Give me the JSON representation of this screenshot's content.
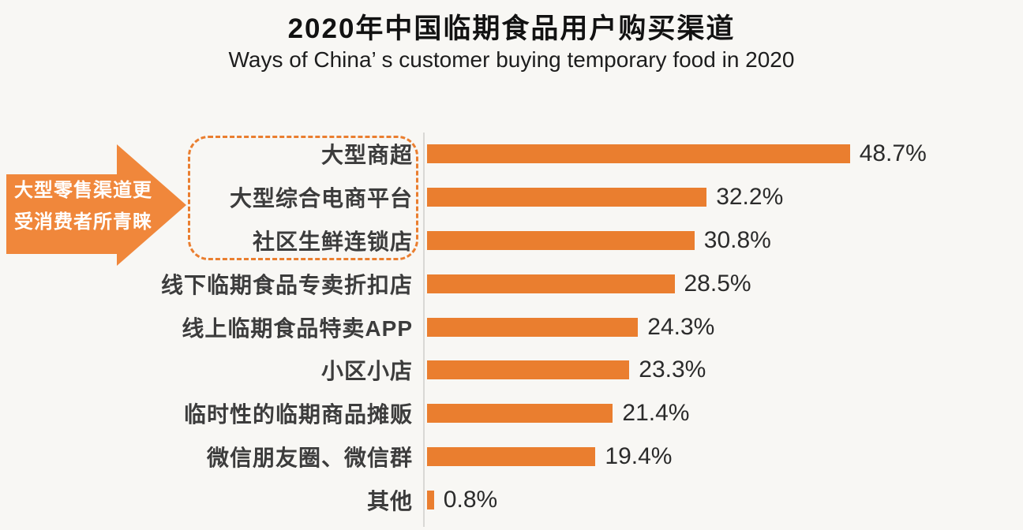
{
  "page": {
    "background_color": "#f8f7f4"
  },
  "header": {
    "title": "2020年中国临期食品用户购买渠道",
    "subtitle": "Ways of China’ s customer buying temporary food in 2020"
  },
  "annotation": {
    "arrow_label_line1": "大型零售渠道更",
    "arrow_label_line2": "受消费者所青睐",
    "arrow_color": "#F0873B",
    "highlight_box_color": "#EA7E2F"
  },
  "chart_data": {
    "type": "bar",
    "orientation": "horizontal",
    "title": "2020年中国临期食品用户购买渠道",
    "subtitle": "Ways of China’ s customer buying temporary food in 2020",
    "categories": [
      "大型商超",
      "大型综合电商平台",
      "社区生鲜连锁店",
      "线下临期食品专卖折扣店",
      "线上临期食品特卖APP",
      "小区小店",
      "临时性的临期商品摊贩",
      "微信朋友圈、微信群",
      "其他"
    ],
    "values": [
      48.7,
      32.2,
      30.8,
      28.5,
      24.3,
      23.3,
      21.4,
      19.4,
      0.8
    ],
    "value_labels": [
      "48.7%",
      "32.2%",
      "30.8%",
      "28.5%",
      "24.3%",
      "23.3%",
      "21.4%",
      "19.4%",
      "0.8%"
    ],
    "unit": "%",
    "bar_color": "#EA7E2F",
    "xlim": [
      0,
      50
    ],
    "grid": false,
    "legend": false,
    "data_labels": "outside-end",
    "highlighted_categories": [
      "大型商超",
      "大型综合电商平台",
      "社区生鲜连锁店"
    ],
    "highlight_note": "大型零售渠道更受消费者所青睐"
  }
}
